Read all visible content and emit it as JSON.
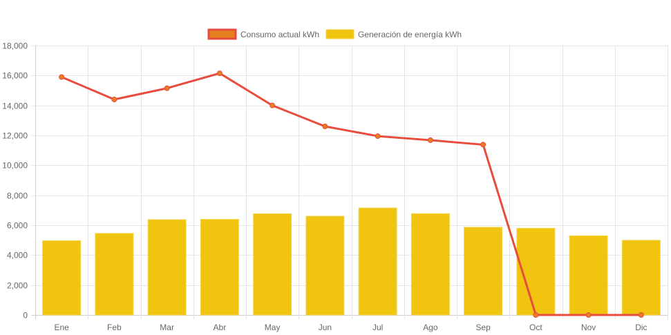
{
  "chart_data": {
    "type": "bar",
    "title": "",
    "xlabel": "",
    "ylabel": "",
    "categories": [
      "Ene",
      "Feb",
      "Mar",
      "Abr",
      "May",
      "Jun",
      "Jul",
      "Ago",
      "Sep",
      "Oct",
      "Nov",
      "Dic"
    ],
    "ylim": [
      0,
      18000
    ],
    "yticks": [
      0,
      2000,
      4000,
      6000,
      8000,
      10000,
      12000,
      14000,
      16000,
      18000
    ],
    "ytick_labels": [
      "0",
      "2,000",
      "4,000",
      "6,000",
      "8,000",
      "10,000",
      "12,000",
      "14,000",
      "16,000",
      "18,000"
    ],
    "grid": true,
    "legend_position": "top-center",
    "series": [
      {
        "name": "Consumo actual kWh",
        "type": "line",
        "color": "#e74c3c",
        "point_color": "#e67e22",
        "values": [
          15900,
          14400,
          15150,
          16150,
          14000,
          12600,
          11950,
          11680,
          11380,
          0,
          0,
          0
        ]
      },
      {
        "name": "Generación de energía kWh",
        "type": "bar",
        "color": "#f1c40f",
        "values": [
          4960,
          5450,
          6370,
          6390,
          6760,
          6600,
          7150,
          6770,
          5860,
          5790,
          5290,
          4990
        ]
      }
    ]
  }
}
